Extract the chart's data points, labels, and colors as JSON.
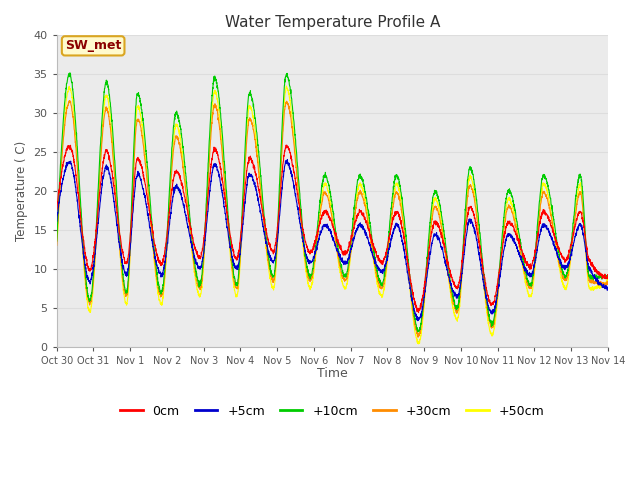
{
  "title": "Water Temperature Profile A",
  "xlabel": "Time",
  "ylabel": "Temperature (C)",
  "ylim": [
    0,
    40
  ],
  "xlim_days": 15,
  "annotation": "SW_met",
  "annotation_color": "#8B0000",
  "annotation_bg": "#FFFACD",
  "annotation_border": "#DAA520",
  "grid_color": "#DDDDDD",
  "bg_color": "#EBEBEB",
  "line_colors": {
    "0cm": "#FF0000",
    "+5cm": "#0000CD",
    "+10cm": "#00CC00",
    "+30cm": "#FF8C00",
    "+50cm": "#FFFF00"
  },
  "x_tick_labels": [
    "Oct 30",
    "Oct 31",
    "Nov 1",
    "Nov 2",
    "Nov 3",
    "Nov 4",
    "Nov 5",
    "Nov 6",
    "Nov 7",
    "Nov 8",
    "Nov 9",
    "Nov 10",
    "Nov 11",
    "Nov 12",
    "Nov 13",
    "Nov 14"
  ],
  "n_points": 3000,
  "duration_days": 15,
  "peak_times": [
    0.35,
    1.35,
    2.2,
    3.25,
    4.3,
    5.25,
    6.25,
    7.3,
    8.25,
    9.25,
    10.3,
    11.25,
    12.3,
    13.25,
    14.25
  ],
  "peak_heights_green": [
    35,
    34,
    32.5,
    30,
    34.5,
    32.5,
    35,
    22,
    22,
    22,
    20,
    23,
    20,
    22,
    22
  ],
  "base_vals": [
    13,
    12,
    11,
    12,
    13,
    12.5,
    12,
    10,
    10,
    9,
    8,
    9,
    9,
    9,
    9
  ],
  "valley_times": [
    0.9,
    1.9,
    2.85,
    3.9,
    4.9,
    5.9,
    6.9,
    7.85,
    8.85,
    9.85,
    10.9,
    11.85,
    12.9,
    13.85,
    14.5
  ],
  "valley_vals": [
    6,
    7,
    7,
    8,
    8,
    9,
    9,
    9,
    8,
    2,
    5,
    3,
    8,
    9,
    9
  ]
}
